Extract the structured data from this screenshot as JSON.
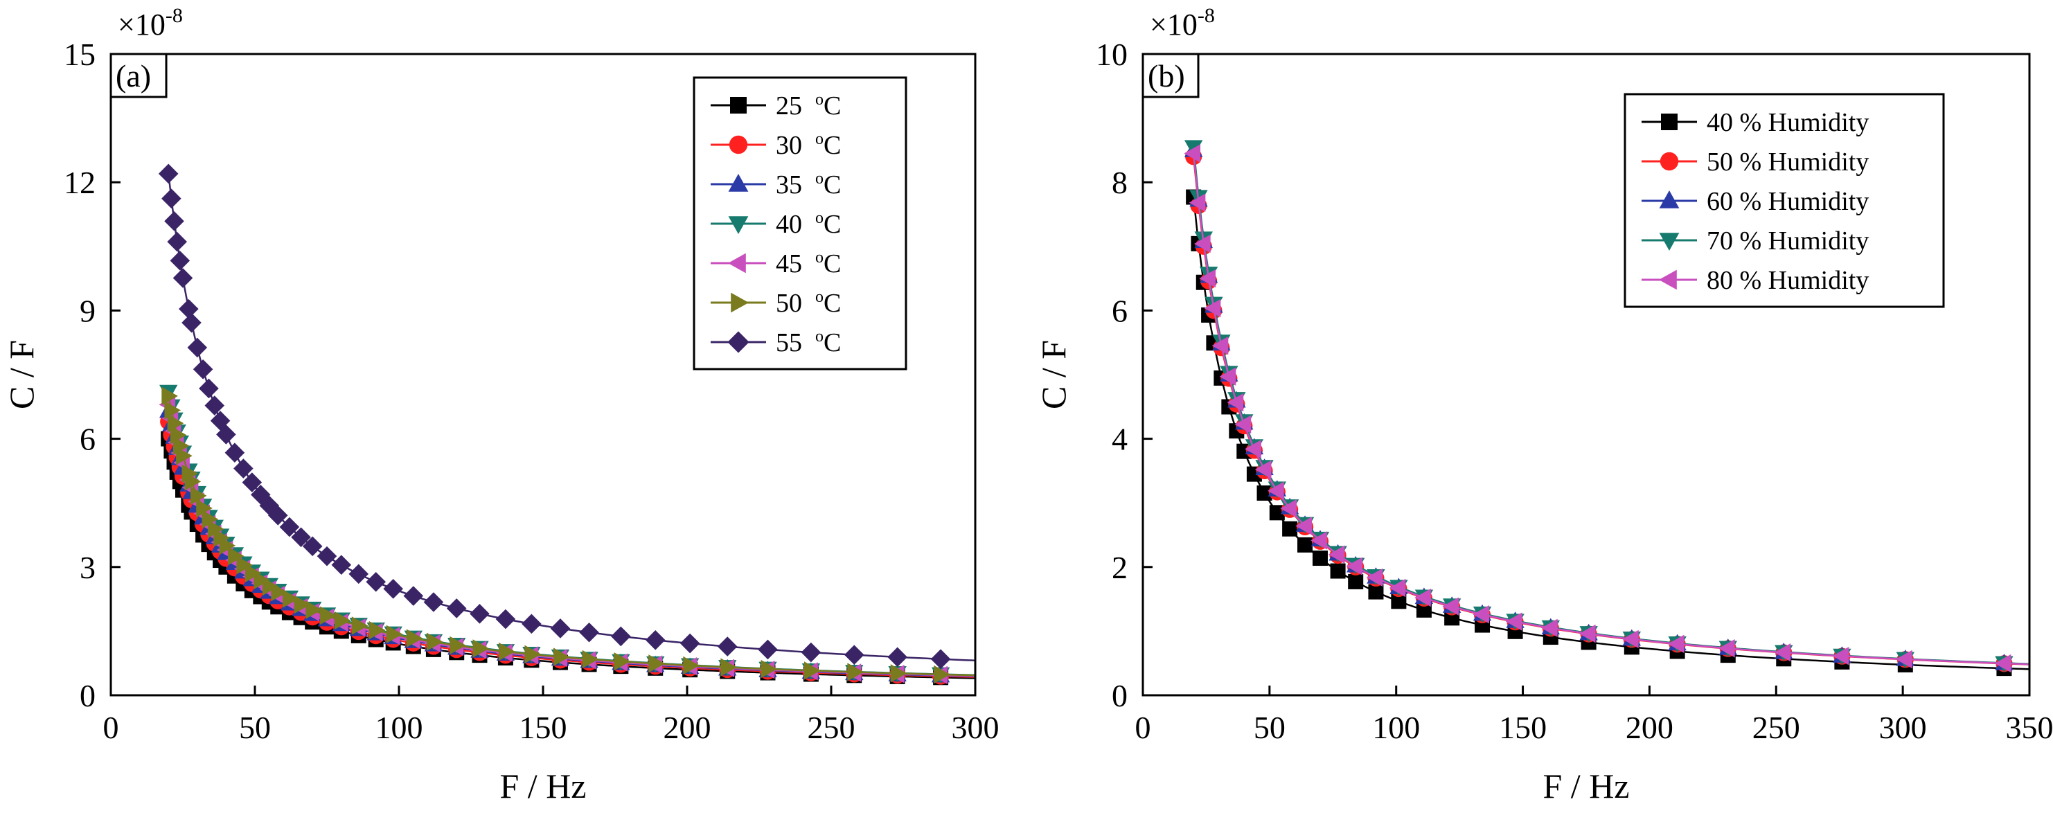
{
  "chart_data": [
    {
      "type": "line",
      "panel_label": "(a)",
      "exponent_label": "×10",
      "exponent_power": "-8",
      "xlabel": "F / Hz",
      "ylabel": "C / F",
      "xlim": [
        0,
        300
      ],
      "ylim": [
        0,
        15
      ],
      "xticks": [
        "0",
        "50",
        "100",
        "150",
        "200",
        "250",
        "300"
      ],
      "yticks": [
        "0",
        "3",
        "6",
        "9",
        "12",
        "15"
      ],
      "legend": "top-right",
      "series": [
        {
          "name": "25 °C",
          "unit_prefix": "25 ",
          "unit_sup": "o",
          "unit_suffix": "C",
          "color": "#000000",
          "marker": "square",
          "k": 120,
          "exp": 1.0
        },
        {
          "name": "30 °C",
          "unit_prefix": "30 ",
          "unit_sup": "o",
          "unit_suffix": "C",
          "color": "#ff2020",
          "marker": "circle",
          "k": 128,
          "exp": 1.0
        },
        {
          "name": "35 °C",
          "unit_prefix": "35 ",
          "unit_sup": "o",
          "unit_suffix": "C",
          "color": "#2a3aa6",
          "marker": "triangle-up",
          "k": 133,
          "exp": 1.0
        },
        {
          "name": "40 °C",
          "unit_prefix": "40 ",
          "unit_sup": "o",
          "unit_suffix": "C",
          "color": "#177a6e",
          "marker": "triangle-down",
          "k": 142,
          "exp": 1.0
        },
        {
          "name": "45 °C",
          "unit_prefix": "45 ",
          "unit_sup": "o",
          "unit_suffix": "C",
          "color": "#c94fbf",
          "marker": "triangle-left",
          "k": 136,
          "exp": 1.0
        },
        {
          "name": "50 °C",
          "unit_prefix": "50 ",
          "unit_sup": "o",
          "unit_suffix": "C",
          "color": "#7a7a1e",
          "marker": "triangle-right",
          "k": 140,
          "exp": 1.0
        },
        {
          "name": "55 °C",
          "unit_prefix": "55 ",
          "unit_sup": "o",
          "unit_suffix": "C",
          "color": "#3a2466",
          "marker": "diamond",
          "k": 244,
          "exp": 1.0
        }
      ],
      "x_samples": [
        20,
        21,
        22,
        23,
        24,
        25,
        27,
        28,
        30,
        32,
        34,
        36,
        38,
        40,
        43,
        46,
        49,
        52,
        55,
        58,
        62,
        66,
        70,
        75,
        80,
        86,
        92,
        98,
        105,
        112,
        120,
        128,
        137,
        146,
        156,
        166,
        177,
        189,
        201,
        214,
        228,
        243,
        258,
        273,
        288
      ]
    },
    {
      "type": "line",
      "panel_label": "(b)",
      "exponent_label": "×10",
      "exponent_power": "-8",
      "xlabel": "F / Hz",
      "ylabel": "C / F",
      "xlim": [
        0,
        350
      ],
      "ylim": [
        0,
        10
      ],
      "xticks": [
        "0",
        "50",
        "100",
        "150",
        "200",
        "250",
        "300",
        "350"
      ],
      "yticks": [
        "0",
        "2",
        "4",
        "6",
        "8",
        "10"
      ],
      "legend": "top-right",
      "series": [
        {
          "name": "40 % Humidity",
          "color": "#000000",
          "marker": "square",
          "k": 170,
          "exp": 1.03
        },
        {
          "name": "50 % Humidity",
          "color": "#ff2020",
          "marker": "circle",
          "k": 168,
          "exp": 1.0
        },
        {
          "name": "60 % Humidity",
          "color": "#2a3aa6",
          "marker": "triangle-up",
          "k": 170,
          "exp": 1.0
        },
        {
          "name": "70 % Humidity",
          "color": "#177a6e",
          "marker": "triangle-down",
          "k": 171,
          "exp": 1.0
        },
        {
          "name": "80 % Humidity",
          "color": "#c94fbf",
          "marker": "triangle-left",
          "k": 169,
          "exp": 1.0
        }
      ],
      "x_samples": [
        20,
        22,
        24,
        26,
        28,
        31,
        34,
        37,
        40,
        44,
        48,
        53,
        58,
        64,
        70,
        77,
        84,
        92,
        101,
        111,
        122,
        134,
        147,
        161,
        176,
        193,
        211,
        231,
        253,
        276,
        301,
        340
      ]
    }
  ]
}
